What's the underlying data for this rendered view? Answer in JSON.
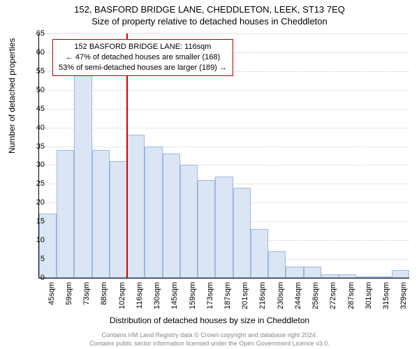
{
  "chart": {
    "type": "histogram",
    "title_main": "152, BASFORD BRIDGE LANE, CHEDDLETON, LEEK, ST13 7EQ",
    "title_sub": "Size of property relative to detached houses in Cheddleton",
    "y_axis_label": "Number of detached properties",
    "x_axis_label": "Distribution of detached houses by size in Cheddleton",
    "credit_line1": "Contains HM Land Registry data © Crown copyright and database right 2024.",
    "credit_line2": "Contains public sector information licensed under the Open Government Licence v3.0.",
    "y_lim": [
      0,
      65
    ],
    "y_tick_step": 5,
    "x_categories": [
      "45sqm",
      "59sqm",
      "73sqm",
      "88sqm",
      "102sqm",
      "116sqm",
      "130sqm",
      "145sqm",
      "159sqm",
      "173sqm",
      "187sqm",
      "201sqm",
      "216sqm",
      "230sqm",
      "244sqm",
      "258sqm",
      "272sqm",
      "287sqm",
      "301sqm",
      "315sqm",
      "329sqm"
    ],
    "bar_values": [
      17,
      34,
      55,
      34,
      31,
      38,
      35,
      33,
      30,
      26,
      27,
      24,
      13,
      7,
      3,
      3,
      1,
      1,
      0,
      0,
      2
    ],
    "bar_fill_color": "#dbe5f4",
    "bar_border_color": "#9bb8e0",
    "grid_color": "#cccccc",
    "background_color": "#ffffff",
    "title_fontsize": 13,
    "label_fontsize": 12,
    "tick_fontsize": 11,
    "credit_fontsize": 9,
    "reference_line": {
      "x_index": 5,
      "color": "#d00000",
      "width": 2
    },
    "info_box": {
      "border_color": "#b00000",
      "line1": "152 BASFORD BRIDGE LANE: 116sqm",
      "line2": "← 47% of detached houses are smaller (168)",
      "line3": "53% of semi-detached houses are larger (189) →"
    }
  }
}
